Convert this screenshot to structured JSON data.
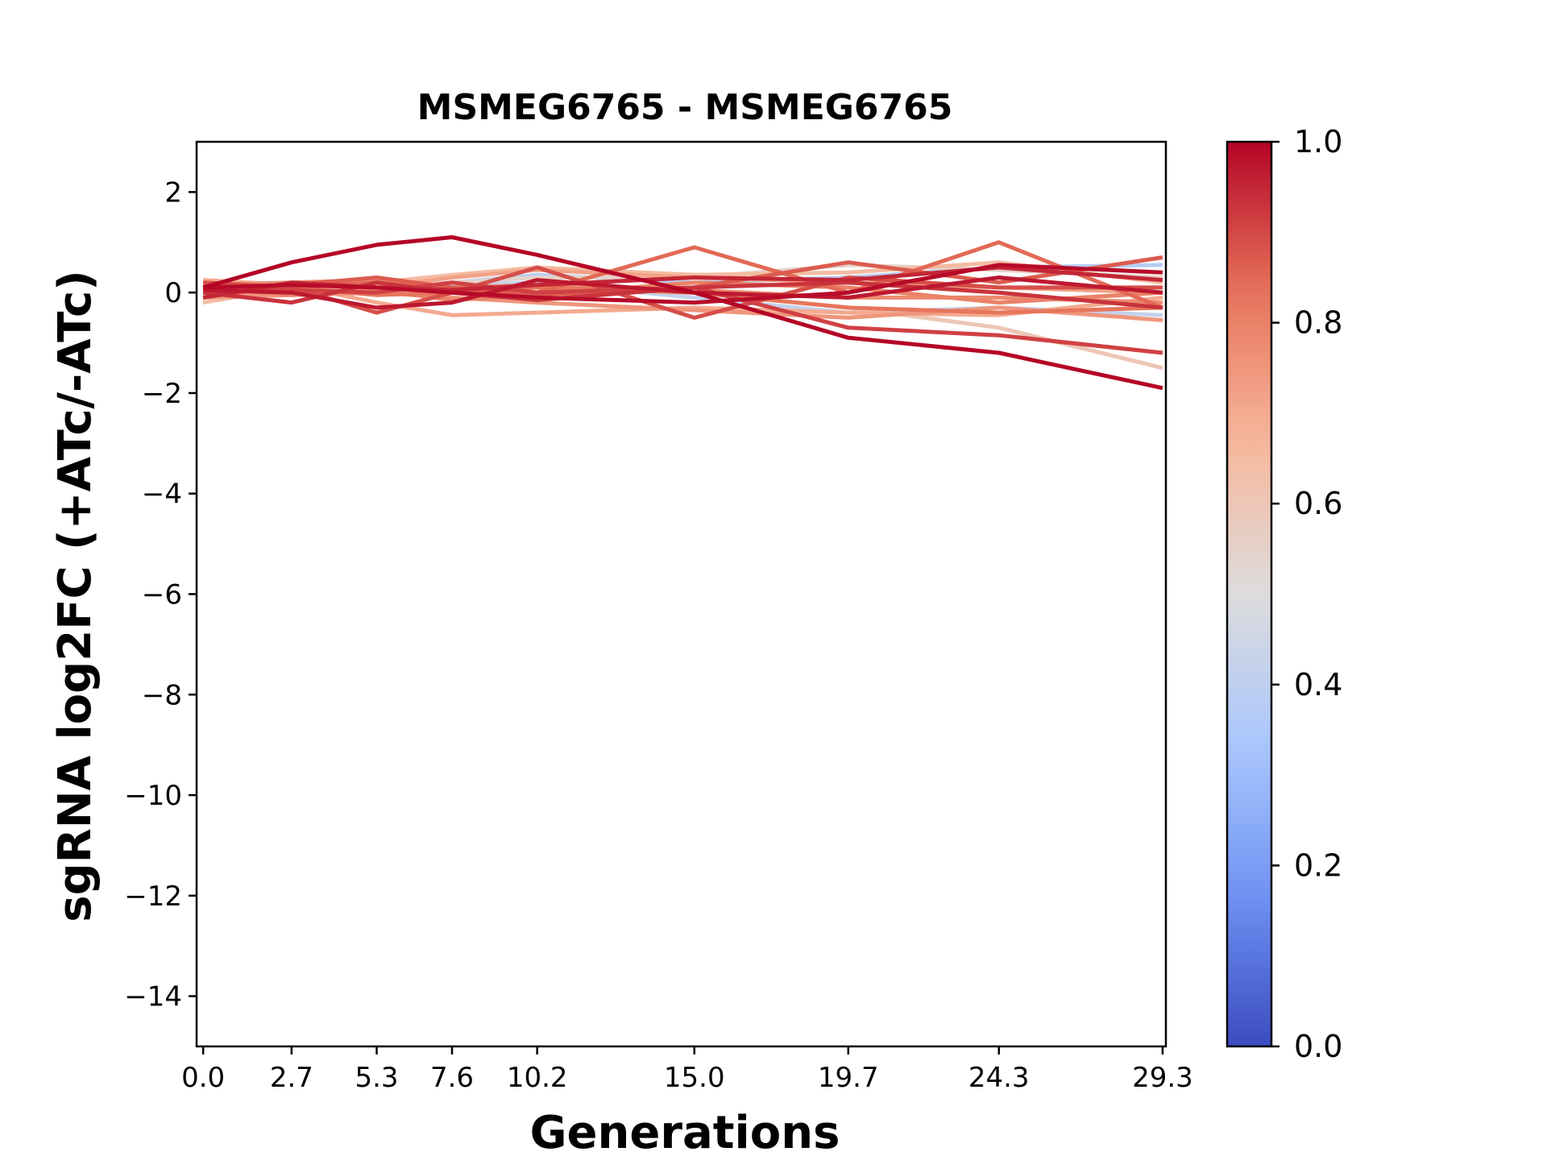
{
  "chart_data": {
    "type": "line",
    "title": "MSMEG6765 - MSMEG6765",
    "xlabel": "Generations",
    "ylabel": "sgRNA log2FC (+ATc/-ATc)",
    "x": [
      0.0,
      2.7,
      5.3,
      7.6,
      10.2,
      15.0,
      19.7,
      24.3,
      29.3
    ],
    "x_tick_labels": [
      "0.0",
      "2.7",
      "5.3",
      "7.6",
      "10.2",
      "15.0",
      "19.7",
      "24.3",
      "29.3"
    ],
    "xlim": [
      -0.2,
      29.4
    ],
    "ylim": [
      -15,
      3
    ],
    "y_ticks": [
      2,
      0,
      -2,
      -4,
      -6,
      -8,
      -10,
      -12,
      -14
    ],
    "y_tick_labels": [
      "2",
      "0",
      "−2",
      "−4",
      "−6",
      "−8",
      "−10",
      "−12",
      "−14"
    ],
    "grid": false,
    "colorbar": {
      "range": [
        0.0,
        1.0
      ],
      "ticks": [
        0.0,
        0.2,
        0.4,
        0.6,
        0.8,
        1.0
      ],
      "tick_labels": [
        "0.0",
        "0.2",
        "0.4",
        "0.6",
        "0.8",
        "1.0"
      ],
      "colormap": "coolwarm",
      "colormap_stops": [
        "#3b4cc0",
        "#6f92f3",
        "#aac7fd",
        "#dddcdc",
        "#f7b89c",
        "#e7745b",
        "#b40426"
      ]
    },
    "series": [
      {
        "color_value": 0.38,
        "values": [
          0.1,
          0.05,
          0.1,
          0.2,
          0.35,
          0.2,
          0.3,
          0.5,
          0.55
        ]
      },
      {
        "color_value": 0.42,
        "values": [
          -0.05,
          0.1,
          0.0,
          0.15,
          0.2,
          -0.1,
          -0.4,
          -0.3,
          -0.45
        ]
      },
      {
        "color_value": 0.55,
        "values": [
          0.05,
          0.0,
          0.1,
          0.2,
          0.3,
          0.3,
          0.55,
          0.45,
          0.3
        ]
      },
      {
        "color_value": 0.6,
        "values": [
          0.2,
          0.1,
          0.15,
          0.05,
          0.1,
          0.0,
          -0.3,
          -0.7,
          -1.5
        ]
      },
      {
        "color_value": 0.65,
        "values": [
          -0.2,
          0.1,
          0.2,
          0.35,
          0.5,
          0.35,
          0.4,
          0.6,
          0.2
        ]
      },
      {
        "color_value": 0.7,
        "values": [
          0.25,
          0.15,
          -0.2,
          -0.45,
          -0.4,
          -0.3,
          -0.4,
          -0.45,
          -0.1
        ]
      },
      {
        "color_value": 0.72,
        "values": [
          0.0,
          0.0,
          0.1,
          0.3,
          0.45,
          0.3,
          0.2,
          0.1,
          0.0
        ]
      },
      {
        "color_value": 0.75,
        "values": [
          -0.1,
          -0.05,
          0.0,
          -0.1,
          -0.2,
          -0.35,
          -0.5,
          -0.3,
          -0.55
        ]
      },
      {
        "color_value": 0.78,
        "values": [
          0.15,
          0.2,
          0.25,
          0.1,
          0.15,
          0.05,
          -0.1,
          -0.1,
          -0.2
        ]
      },
      {
        "color_value": 0.8,
        "values": [
          0.1,
          -0.05,
          0.05,
          -0.15,
          -0.05,
          0.2,
          0.1,
          -0.2,
          0.0
        ]
      },
      {
        "color_value": 0.83,
        "values": [
          0.0,
          0.1,
          -0.05,
          0.0,
          0.1,
          0.0,
          -0.3,
          -0.4,
          -0.3
        ]
      },
      {
        "color_value": 0.85,
        "values": [
          0.05,
          0.1,
          0.2,
          0.05,
          0.0,
          0.9,
          0.0,
          1.0,
          -0.3
        ]
      },
      {
        "color_value": 0.87,
        "values": [
          -0.1,
          0.15,
          0.3,
          0.1,
          -0.05,
          0.1,
          0.6,
          0.2,
          0.7
        ]
      },
      {
        "color_value": 0.89,
        "values": [
          0.2,
          0.1,
          -0.4,
          0.0,
          0.5,
          -0.5,
          0.3,
          0.1,
          0.1
        ]
      },
      {
        "color_value": 0.91,
        "values": [
          0.1,
          0.05,
          0.0,
          0.2,
          0.0,
          0.1,
          -0.7,
          -0.85,
          -1.2
        ]
      },
      {
        "color_value": 0.93,
        "values": [
          0.0,
          -0.2,
          0.2,
          0.0,
          -0.15,
          0.1,
          0.2,
          0.0,
          -0.3
        ]
      },
      {
        "color_value": 0.95,
        "values": [
          -0.1,
          0.2,
          0.1,
          0.05,
          0.15,
          0.3,
          0.25,
          0.5,
          0.25
        ]
      },
      {
        "color_value": 0.97,
        "values": [
          0.05,
          0.0,
          -0.3,
          -0.2,
          0.25,
          0.0,
          -0.1,
          0.3,
          0.0
        ]
      },
      {
        "color_value": 0.99,
        "values": [
          0.1,
          0.15,
          0.1,
          0.0,
          -0.1,
          -0.2,
          0.0,
          0.55,
          0.4
        ]
      },
      {
        "color_value": 1.0,
        "values": [
          0.1,
          0.6,
          0.95,
          1.1,
          0.75,
          0.0,
          -0.9,
          -1.2,
          -1.9
        ]
      }
    ]
  }
}
